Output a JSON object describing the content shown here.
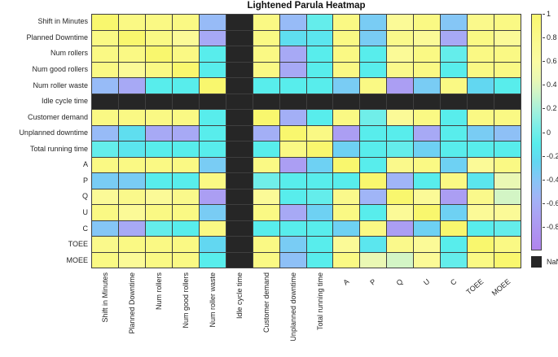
{
  "title": "Lightened Parula Heatmap",
  "colors": {
    "background": "#ffffff",
    "gridline": "#3f3f3f",
    "nan_cell": "#262626",
    "label_text": "#262626",
    "palette_stops": [
      [
        1.0,
        "#F9F76E"
      ],
      [
        0.8,
        "#FAF98B"
      ],
      [
        0.6,
        "#FBFBA3"
      ],
      [
        0.45,
        "#EAF8B4"
      ],
      [
        0.35,
        "#D3F5C5"
      ],
      [
        0.2,
        "#A8F1DA"
      ],
      [
        0.05,
        "#7CEEE8"
      ],
      [
        -0.1,
        "#58EDEC"
      ],
      [
        -0.25,
        "#62D7F1"
      ],
      [
        -0.4,
        "#85C6F6"
      ],
      [
        -0.55,
        "#A0B5F7"
      ],
      [
        -0.7,
        "#AAA3F4"
      ],
      [
        -0.85,
        "#AE93F0"
      ],
      [
        -1.0,
        "#B085EE"
      ]
    ]
  },
  "chart_data": {
    "type": "heatmap",
    "colormap": "lightened parula",
    "title": "Lightened Parula Heatmap",
    "labels": [
      "Shift in Minutes",
      "Planned Downtime",
      "Num rollers",
      "Num good rollers",
      "Num roller waste",
      "Idle cycle time",
      "Customer demand",
      "Unplanned downtime",
      "Total running time",
      "A",
      "P",
      "Q",
      "U",
      "C",
      "TOEE",
      "MOEE"
    ],
    "nan_row_col": "Idle cycle time",
    "matrix": [
      [
        1,
        0.85,
        0.85,
        0.85,
        -0.5,
        null,
        0.85,
        -0.5,
        -0.05,
        0.85,
        -0.35,
        0.7,
        0.85,
        -0.4,
        0.8,
        0.85
      ],
      [
        0.85,
        1,
        0.85,
        0.7,
        -0.65,
        null,
        0.85,
        -0.2,
        -0.15,
        0.85,
        -0.35,
        0.8,
        0.7,
        -0.65,
        0.85,
        0.7
      ],
      [
        0.85,
        0.85,
        1,
        0.85,
        -0.1,
        null,
        0.85,
        -0.65,
        -0.1,
        0.85,
        -0.1,
        0.7,
        0.85,
        -0.05,
        0.85,
        0.85
      ],
      [
        0.85,
        0.7,
        0.85,
        1,
        -0.1,
        null,
        0.85,
        -0.65,
        -0.1,
        0.85,
        -0.1,
        0.8,
        0.85,
        -0.1,
        0.85,
        0.85
      ],
      [
        -0.5,
        -0.65,
        -0.1,
        -0.1,
        1,
        null,
        -0.1,
        -0.1,
        -0.1,
        -0.35,
        0.85,
        -0.75,
        -0.35,
        0.85,
        -0.25,
        -0.1
      ],
      [
        null,
        null,
        null,
        null,
        null,
        null,
        null,
        null,
        null,
        null,
        null,
        null,
        null,
        null,
        null,
        null
      ],
      [
        0.85,
        0.85,
        0.85,
        0.85,
        -0.1,
        null,
        1,
        -0.6,
        -0.1,
        0.85,
        0.0,
        0.7,
        0.85,
        -0.1,
        0.85,
        0.85
      ],
      [
        -0.5,
        -0.2,
        -0.65,
        -0.65,
        -0.1,
        null,
        -0.6,
        1,
        0.85,
        -0.75,
        -0.1,
        -0.1,
        -0.65,
        -0.1,
        -0.35,
        -0.45
      ],
      [
        -0.05,
        -0.15,
        -0.1,
        -0.1,
        -0.1,
        null,
        -0.1,
        0.85,
        1,
        -0.3,
        -0.1,
        -0.05,
        -0.3,
        -0.1,
        -0.1,
        -0.1
      ],
      [
        0.85,
        0.85,
        0.85,
        0.85,
        -0.35,
        null,
        0.85,
        -0.75,
        -0.3,
        1,
        -0.1,
        0.8,
        0.85,
        -0.3,
        0.7,
        0.85
      ],
      [
        -0.35,
        -0.35,
        -0.1,
        -0.1,
        0.85,
        null,
        0.0,
        -0.1,
        -0.1,
        -0.1,
        1,
        -0.55,
        -0.1,
        0.85,
        -0.15,
        0.45
      ],
      [
        0.7,
        0.8,
        0.7,
        0.8,
        -0.75,
        null,
        0.7,
        -0.1,
        -0.05,
        0.8,
        -0.55,
        1,
        0.7,
        -0.75,
        0.8,
        0.35
      ],
      [
        0.85,
        0.7,
        0.85,
        0.85,
        -0.35,
        null,
        0.85,
        -0.65,
        -0.3,
        0.85,
        -0.1,
        0.7,
        1,
        -0.3,
        0.7,
        0.7
      ],
      [
        -0.4,
        -0.65,
        -0.05,
        -0.1,
        0.85,
        null,
        -0.1,
        -0.1,
        -0.1,
        -0.3,
        0.85,
        -0.75,
        -0.3,
        1,
        -0.1,
        -0.05
      ],
      [
        0.8,
        0.85,
        0.85,
        0.85,
        -0.25,
        null,
        0.85,
        -0.35,
        -0.1,
        0.7,
        -0.15,
        0.8,
        0.7,
        -0.1,
        1,
        0.85
      ],
      [
        0.85,
        0.7,
        0.85,
        0.85,
        -0.1,
        null,
        0.85,
        -0.45,
        -0.1,
        0.85,
        0.45,
        0.35,
        0.7,
        -0.05,
        0.85,
        1
      ]
    ],
    "colorbar": {
      "min": -1,
      "max": 1,
      "ticks": [
        "1",
        "0.8",
        "0.6",
        "0.4",
        "0.2",
        "0",
        "-0.2",
        "-0.4",
        "-0.6",
        "-0.8"
      ],
      "tick_values": [
        1,
        0.8,
        0.6,
        0.4,
        0.2,
        0,
        -0.2,
        -0.4,
        -0.6,
        -0.8
      ],
      "nan_label": "NaN",
      "position": "right"
    }
  }
}
